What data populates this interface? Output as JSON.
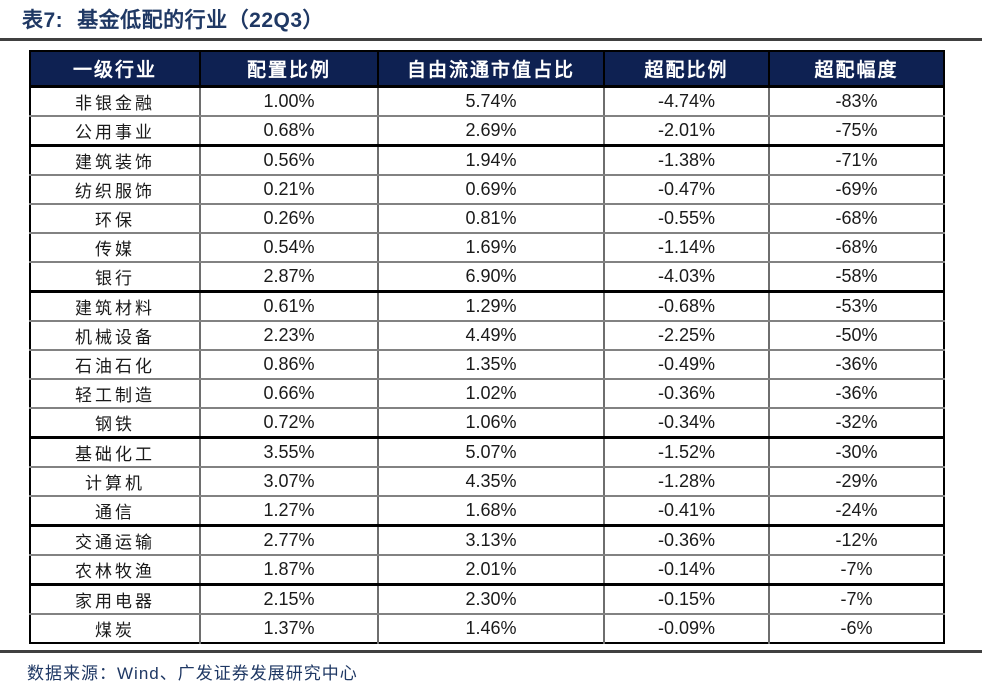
{
  "title": {
    "label": "表7:",
    "text": "基金低配的行业（22Q3）"
  },
  "table": {
    "columns": [
      "一级行业",
      "配置比例",
      "自由流通市值占比",
      "超配比例",
      "超配幅度"
    ],
    "rows": [
      {
        "industry": "非银金融",
        "allocation": "1.00%",
        "float_mcap_share": "5.74%",
        "overweight_ratio": "-4.74%",
        "overweight_magnitude": "-83%",
        "thick_bottom": false
      },
      {
        "industry": "公用事业",
        "allocation": "0.68%",
        "float_mcap_share": "2.69%",
        "overweight_ratio": "-2.01%",
        "overweight_magnitude": "-75%",
        "thick_bottom": true
      },
      {
        "industry": "建筑装饰",
        "allocation": "0.56%",
        "float_mcap_share": "1.94%",
        "overweight_ratio": "-1.38%",
        "overweight_magnitude": "-71%",
        "thick_bottom": false
      },
      {
        "industry": "纺织服饰",
        "allocation": "0.21%",
        "float_mcap_share": "0.69%",
        "overweight_ratio": "-0.47%",
        "overweight_magnitude": "-69%",
        "thick_bottom": false
      },
      {
        "industry": "环保",
        "allocation": "0.26%",
        "float_mcap_share": "0.81%",
        "overweight_ratio": "-0.55%",
        "overweight_magnitude": "-68%",
        "thick_bottom": false
      },
      {
        "industry": "传媒",
        "allocation": "0.54%",
        "float_mcap_share": "1.69%",
        "overweight_ratio": "-1.14%",
        "overweight_magnitude": "-68%",
        "thick_bottom": false
      },
      {
        "industry": "银行",
        "allocation": "2.87%",
        "float_mcap_share": "6.90%",
        "overweight_ratio": "-4.03%",
        "overweight_magnitude": "-58%",
        "thick_bottom": true
      },
      {
        "industry": "建筑材料",
        "allocation": "0.61%",
        "float_mcap_share": "1.29%",
        "overweight_ratio": "-0.68%",
        "overweight_magnitude": "-53%",
        "thick_bottom": false
      },
      {
        "industry": "机械设备",
        "allocation": "2.23%",
        "float_mcap_share": "4.49%",
        "overweight_ratio": "-2.25%",
        "overweight_magnitude": "-50%",
        "thick_bottom": false
      },
      {
        "industry": "石油石化",
        "allocation": "0.86%",
        "float_mcap_share": "1.35%",
        "overweight_ratio": "-0.49%",
        "overweight_magnitude": "-36%",
        "thick_bottom": false
      },
      {
        "industry": "轻工制造",
        "allocation": "0.66%",
        "float_mcap_share": "1.02%",
        "overweight_ratio": "-0.36%",
        "overweight_magnitude": "-36%",
        "thick_bottom": false
      },
      {
        "industry": "钢铁",
        "allocation": "0.72%",
        "float_mcap_share": "1.06%",
        "overweight_ratio": "-0.34%",
        "overweight_magnitude": "-32%",
        "thick_bottom": true
      },
      {
        "industry": "基础化工",
        "allocation": "3.55%",
        "float_mcap_share": "5.07%",
        "overweight_ratio": "-1.52%",
        "overweight_magnitude": "-30%",
        "thick_bottom": false
      },
      {
        "industry": "计算机",
        "allocation": "3.07%",
        "float_mcap_share": "4.35%",
        "overweight_ratio": "-1.28%",
        "overweight_magnitude": "-29%",
        "thick_bottom": false
      },
      {
        "industry": "通信",
        "allocation": "1.27%",
        "float_mcap_share": "1.68%",
        "overweight_ratio": "-0.41%",
        "overweight_magnitude": "-24%",
        "thick_bottom": true
      },
      {
        "industry": "交通运输",
        "allocation": "2.77%",
        "float_mcap_share": "3.13%",
        "overweight_ratio": "-0.36%",
        "overweight_magnitude": "-12%",
        "thick_bottom": false
      },
      {
        "industry": "农林牧渔",
        "allocation": "1.87%",
        "float_mcap_share": "2.01%",
        "overweight_ratio": "-0.14%",
        "overweight_magnitude": "-7%",
        "thick_bottom": true
      },
      {
        "industry": "家用电器",
        "allocation": "2.15%",
        "float_mcap_share": "2.30%",
        "overweight_ratio": "-0.15%",
        "overweight_magnitude": "-7%",
        "thick_bottom": false
      },
      {
        "industry": "煤炭",
        "allocation": "1.37%",
        "float_mcap_share": "1.46%",
        "overweight_ratio": "-0.09%",
        "overweight_magnitude": "-6%",
        "thick_bottom": false
      }
    ]
  },
  "footer": {
    "text": "数据来源：Wind、广发证券发展研究中心"
  },
  "colors": {
    "header_bg": "#0E2152",
    "header_text": "#FFFFFF",
    "title_text": "#1F3864",
    "footer_text": "#1F3864",
    "rule": "#404040",
    "border_thin": "#828282",
    "border_thick": "#000000",
    "body_text": "#1A1A1A"
  }
}
